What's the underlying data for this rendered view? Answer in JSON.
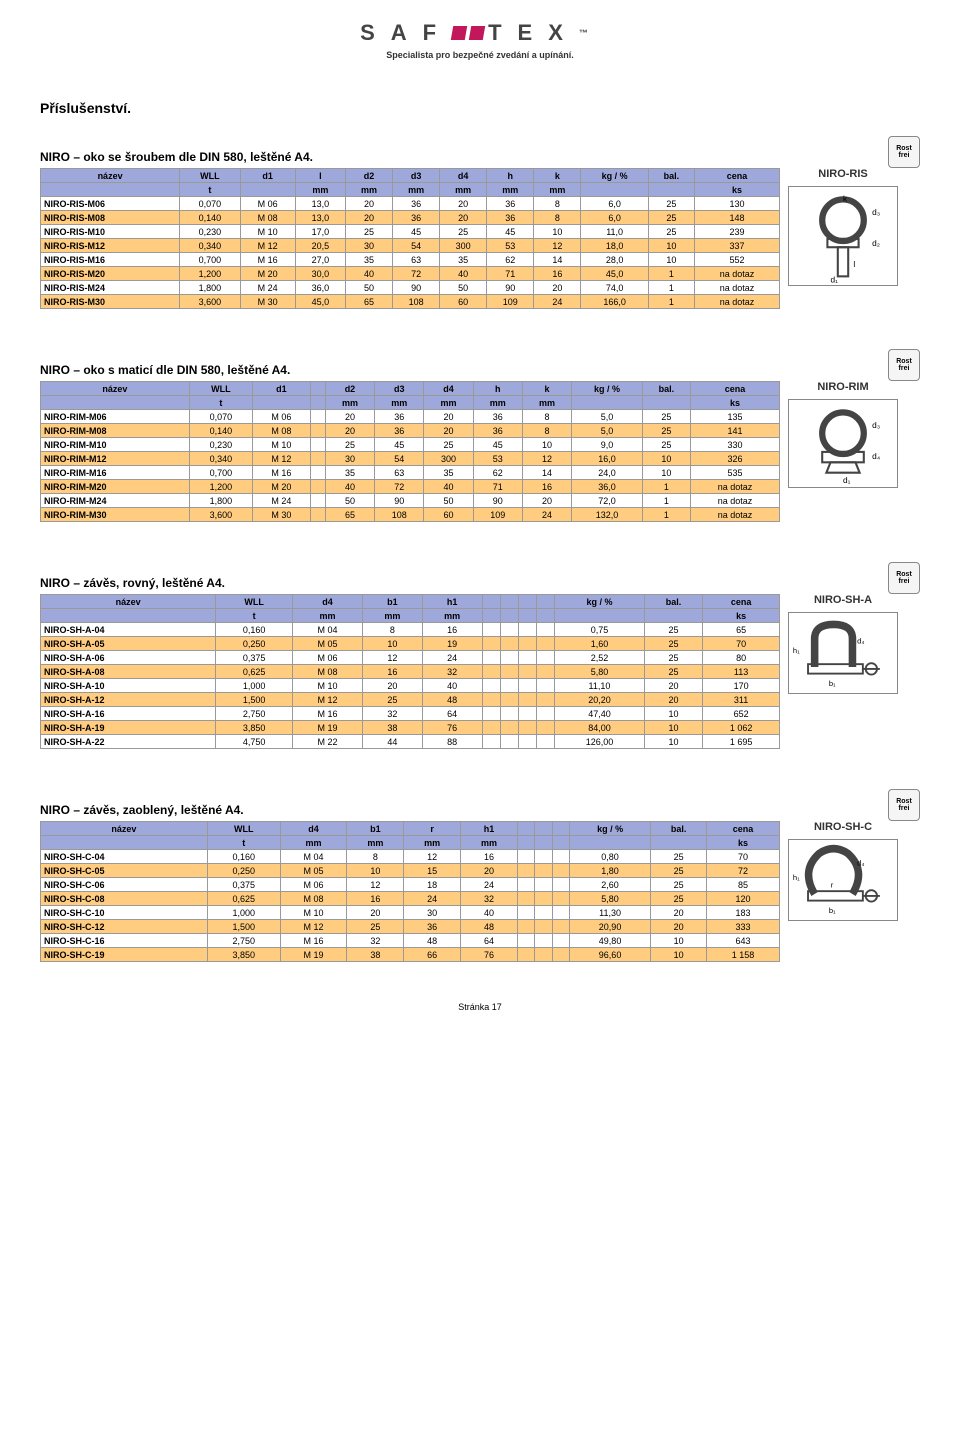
{
  "brand": "S A F E T E X",
  "tagline": "Specialista pro bezpečné zvedání a upínání.",
  "page_title": "Příslušenství.",
  "footer": "Stránka 17",
  "sections": [
    {
      "title": "NIRO – oko se šroubem dle DIN 580, leštěné A4.",
      "product_code": "NIRO-RIS",
      "headers1": [
        "název",
        "WLL",
        "d1",
        "l",
        "d2",
        "d3",
        "d4",
        "h",
        "k",
        "kg / %",
        "bal.",
        "cena"
      ],
      "headers2": [
        "",
        "t",
        "",
        "mm",
        "mm",
        "mm",
        "mm",
        "mm",
        "mm",
        "",
        "",
        "ks"
      ],
      "rows": [
        [
          "NIRO-RIS-M06",
          "0,070",
          "M 06",
          "13,0",
          "20",
          "36",
          "20",
          "36",
          "8",
          "6,0",
          "25",
          "130"
        ],
        [
          "NIRO-RIS-M08",
          "0,140",
          "M 08",
          "13,0",
          "20",
          "36",
          "20",
          "36",
          "8",
          "6,0",
          "25",
          "148"
        ],
        [
          "NIRO-RIS-M10",
          "0,230",
          "M 10",
          "17,0",
          "25",
          "45",
          "25",
          "45",
          "10",
          "11,0",
          "25",
          "239"
        ],
        [
          "NIRO-RIS-M12",
          "0,340",
          "M 12",
          "20,5",
          "30",
          "54",
          "300",
          "53",
          "12",
          "18,0",
          "10",
          "337"
        ],
        [
          "NIRO-RIS-M16",
          "0,700",
          "M 16",
          "27,0",
          "35",
          "63",
          "35",
          "62",
          "14",
          "28,0",
          "10",
          "552"
        ],
        [
          "NIRO-RIS-M20",
          "1,200",
          "M 20",
          "30,0",
          "40",
          "72",
          "40",
          "71",
          "16",
          "45,0",
          "1",
          "na dotaz"
        ],
        [
          "NIRO-RIS-M24",
          "1,800",
          "M 24",
          "36,0",
          "50",
          "90",
          "50",
          "90",
          "20",
          "74,0",
          "1",
          "na dotaz"
        ],
        [
          "NIRO-RIS-M30",
          "3,600",
          "M 30",
          "45,0",
          "65",
          "108",
          "60",
          "109",
          "24",
          "166,0",
          "1",
          "na dotaz"
        ]
      ],
      "diagram": "eyebolt"
    },
    {
      "title": "NIRO – oko s maticí dle DIN 580, leštěné A4.",
      "product_code": "NIRO-RIM",
      "headers1": [
        "název",
        "WLL",
        "d1",
        "",
        "d2",
        "d3",
        "d4",
        "h",
        "k",
        "kg / %",
        "bal.",
        "cena"
      ],
      "headers2": [
        "",
        "t",
        "",
        "",
        "mm",
        "mm",
        "mm",
        "mm",
        "mm",
        "",
        "",
        "ks"
      ],
      "rows": [
        [
          "NIRO-RIM-M06",
          "0,070",
          "M 06",
          "",
          "20",
          "36",
          "20",
          "36",
          "8",
          "5,0",
          "25",
          "135"
        ],
        [
          "NIRO-RIM-M08",
          "0,140",
          "M 08",
          "",
          "20",
          "36",
          "20",
          "36",
          "8",
          "5,0",
          "25",
          "141"
        ],
        [
          "NIRO-RIM-M10",
          "0,230",
          "M 10",
          "",
          "25",
          "45",
          "25",
          "45",
          "10",
          "9,0",
          "25",
          "330"
        ],
        [
          "NIRO-RIM-M12",
          "0,340",
          "M 12",
          "",
          "30",
          "54",
          "300",
          "53",
          "12",
          "16,0",
          "10",
          "326"
        ],
        [
          "NIRO-RIM-M16",
          "0,700",
          "M 16",
          "",
          "35",
          "63",
          "35",
          "62",
          "14",
          "24,0",
          "10",
          "535"
        ],
        [
          "NIRO-RIM-M20",
          "1,200",
          "M 20",
          "",
          "40",
          "72",
          "40",
          "71",
          "16",
          "36,0",
          "1",
          "na dotaz"
        ],
        [
          "NIRO-RIM-M24",
          "1,800",
          "M 24",
          "",
          "50",
          "90",
          "50",
          "90",
          "20",
          "72,0",
          "1",
          "na dotaz"
        ],
        [
          "NIRO-RIM-M30",
          "3,600",
          "M 30",
          "",
          "65",
          "108",
          "60",
          "109",
          "24",
          "132,0",
          "1",
          "na dotaz"
        ]
      ],
      "diagram": "eyenut"
    },
    {
      "title": "NIRO – závěs, rovný, leštěné A4.",
      "product_code": "NIRO-SH-A",
      "headers1": [
        "název",
        "WLL",
        "d4",
        "b1",
        "h1",
        "",
        "",
        "",
        "",
        "kg / %",
        "bal.",
        "cena"
      ],
      "headers2": [
        "",
        "t",
        "mm",
        "mm",
        "mm",
        "",
        "",
        "",
        "",
        "",
        "",
        "ks"
      ],
      "rows": [
        [
          "NIRO-SH-A-04",
          "0,160",
          "M 04",
          "8",
          "16",
          "",
          "",
          "",
          "",
          "0,75",
          "25",
          "65"
        ],
        [
          "NIRO-SH-A-05",
          "0,250",
          "M 05",
          "10",
          "19",
          "",
          "",
          "",
          "",
          "1,60",
          "25",
          "70"
        ],
        [
          "NIRO-SH-A-06",
          "0,375",
          "M 06",
          "12",
          "24",
          "",
          "",
          "",
          "",
          "2,52",
          "25",
          "80"
        ],
        [
          "NIRO-SH-A-08",
          "0,625",
          "M 08",
          "16",
          "32",
          "",
          "",
          "",
          "",
          "5,80",
          "25",
          "113"
        ],
        [
          "NIRO-SH-A-10",
          "1,000",
          "M 10",
          "20",
          "40",
          "",
          "",
          "",
          "",
          "11,10",
          "20",
          "170"
        ],
        [
          "NIRO-SH-A-12",
          "1,500",
          "M 12",
          "25",
          "48",
          "",
          "",
          "",
          "",
          "20,20",
          "20",
          "311"
        ],
        [
          "NIRO-SH-A-16",
          "2,750",
          "M 16",
          "32",
          "64",
          "",
          "",
          "",
          "",
          "47,40",
          "10",
          "652"
        ],
        [
          "NIRO-SH-A-19",
          "3,850",
          "M 19",
          "38",
          "76",
          "",
          "",
          "",
          "",
          "84,00",
          "10",
          "1 062"
        ],
        [
          "NIRO-SH-A-22",
          "4,750",
          "M 22",
          "44",
          "88",
          "",
          "",
          "",
          "",
          "126,00",
          "10",
          "1 695"
        ]
      ],
      "diagram": "shackle-d"
    },
    {
      "title": "NIRO – závěs, zaoblený, leštěné A4.",
      "product_code": "NIRO-SH-C",
      "headers1": [
        "název",
        "WLL",
        "d4",
        "b1",
        "r",
        "h1",
        "",
        "",
        "",
        "kg / %",
        "bal.",
        "cena"
      ],
      "headers2": [
        "",
        "t",
        "mm",
        "mm",
        "mm",
        "mm",
        "",
        "",
        "",
        "",
        "",
        "ks"
      ],
      "rows": [
        [
          "NIRO-SH-C-04",
          "0,160",
          "M 04",
          "8",
          "12",
          "16",
          "",
          "",
          "",
          "0,80",
          "25",
          "70"
        ],
        [
          "NIRO-SH-C-05",
          "0,250",
          "M 05",
          "10",
          "15",
          "20",
          "",
          "",
          "",
          "1,80",
          "25",
          "72"
        ],
        [
          "NIRO-SH-C-06",
          "0,375",
          "M 06",
          "12",
          "18",
          "24",
          "",
          "",
          "",
          "2,60",
          "25",
          "85"
        ],
        [
          "NIRO-SH-C-08",
          "0,625",
          "M 08",
          "16",
          "24",
          "32",
          "",
          "",
          "",
          "5,80",
          "25",
          "120"
        ],
        [
          "NIRO-SH-C-10",
          "1,000",
          "M 10",
          "20",
          "30",
          "40",
          "",
          "",
          "",
          "11,30",
          "20",
          "183"
        ],
        [
          "NIRO-SH-C-12",
          "1,500",
          "M 12",
          "25",
          "36",
          "48",
          "",
          "",
          "",
          "20,90",
          "20",
          "333"
        ],
        [
          "NIRO-SH-C-16",
          "2,750",
          "M 16",
          "32",
          "48",
          "64",
          "",
          "",
          "",
          "49,80",
          "10",
          "643"
        ],
        [
          "NIRO-SH-C-19",
          "3,850",
          "M 19",
          "38",
          "66",
          "76",
          "",
          "",
          "",
          "96,60",
          "10",
          "1 158"
        ]
      ],
      "diagram": "shackle-bow"
    }
  ],
  "colors": {
    "header_bg": "#9fa8da",
    "alt_row_bg": "#ffcc80",
    "border": "#999999",
    "brand_accent": "#c2185b"
  }
}
